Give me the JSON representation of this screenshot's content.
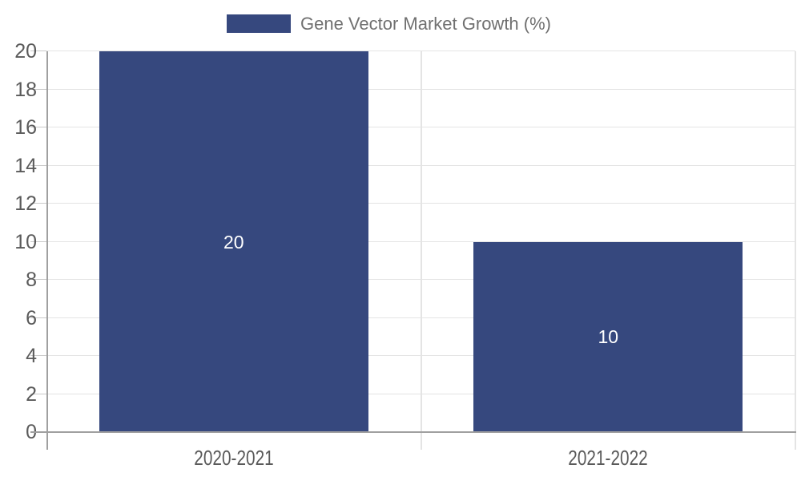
{
  "chart_data": {
    "type": "bar",
    "title": "",
    "legend": {
      "label": "Gene Vector Market Growth (%)",
      "position": "top-center"
    },
    "categories": [
      "2020-2021",
      "2021-2022"
    ],
    "series": [
      {
        "name": "Gene Vector Market Growth (%)",
        "values": [
          20,
          10
        ]
      }
    ],
    "value_labels": [
      "20",
      "10"
    ],
    "xlabel": "",
    "ylabel": "",
    "ylim": [
      0,
      20
    ],
    "ytick_step": 2,
    "yticks": [
      0,
      2,
      4,
      6,
      8,
      10,
      12,
      14,
      16,
      18,
      20
    ],
    "grid": true,
    "colors": {
      "bar": "#36487e",
      "value_label": "#ffffff",
      "grid": "#e4e4e4",
      "axis": "#a0a0a0",
      "tick": "#c9c9c9",
      "tick_label": "#5a5a5a",
      "legend_text": "#707070"
    }
  }
}
